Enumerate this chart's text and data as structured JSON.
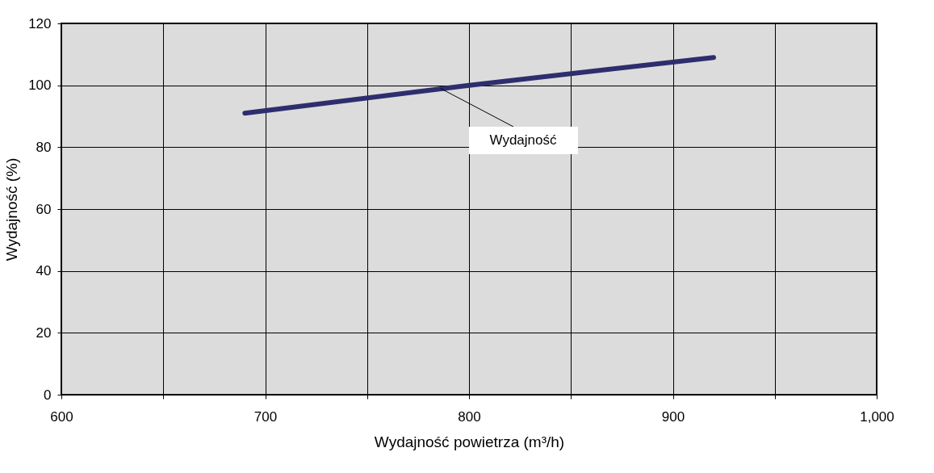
{
  "chart_data": {
    "type": "line",
    "xlabel": "Wydajność powietrza (m³/h)",
    "ylabel": "Wydajność (%)",
    "x": [
      690,
      800,
      920
    ],
    "series": [
      {
        "color": "#2e2e6e",
        "values": [
          91,
          100,
          109
        ]
      }
    ],
    "xlim": [
      600,
      1000
    ],
    "xticks": [
      600,
      {
        "value": 650,
        "label": null
      },
      700,
      {
        "value": 750,
        "label": null
      },
      800,
      {
        "value": 850,
        "label": null
      },
      900,
      {
        "value": 950,
        "label": null
      },
      {
        "value": 1000,
        "label": "1,000"
      }
    ],
    "ylim": [
      0,
      120
    ],
    "yticks": [
      0,
      20,
      40,
      60,
      80,
      100,
      120
    ],
    "grid": true,
    "marker": "none",
    "line_style": "solid",
    "annotations": [
      {
        "text": "Wydajność",
        "x": 786,
        "y": 99
      }
    ]
  }
}
